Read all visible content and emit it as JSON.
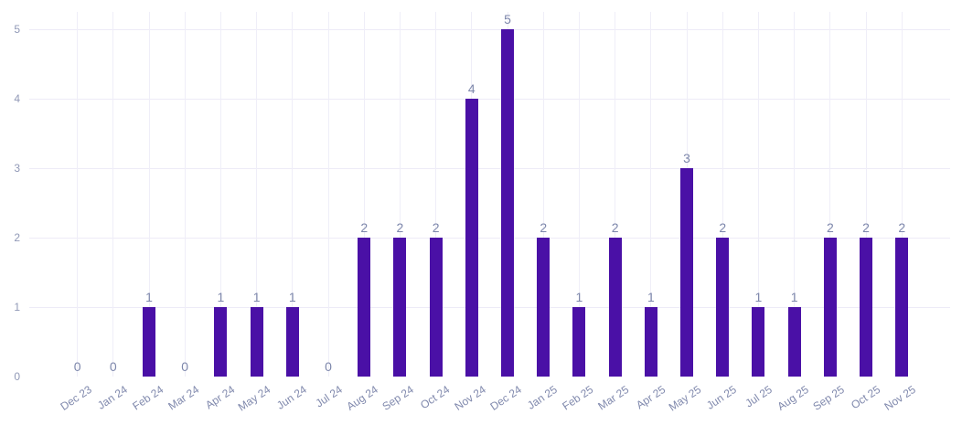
{
  "chart_data": {
    "type": "bar",
    "title": "",
    "xlabel": "",
    "ylabel": "",
    "categories": [
      "Dec 23",
      "Jan 24",
      "Feb 24",
      "Mar 24",
      "Apr 24",
      "May 24",
      "Jun 24",
      "Jul 24",
      "Aug 24",
      "Sep 24",
      "Oct 24",
      "Nov 24",
      "Dec 24",
      "Jan 25",
      "Feb 25",
      "Mar 25",
      "Apr 25",
      "May 25",
      "Jun 25",
      "Jul 25",
      "Aug 25",
      "Sep 25",
      "Oct 25",
      "Nov 25"
    ],
    "values": [
      0,
      0,
      1,
      0,
      1,
      1,
      1,
      0,
      2,
      2,
      2,
      4,
      5,
      2,
      1,
      2,
      1,
      3,
      2,
      1,
      1,
      2,
      2,
      2
    ],
    "yticks": [
      0,
      1,
      2,
      3,
      4,
      5
    ],
    "ylim": [
      0,
      5.25
    ],
    "grid": "on",
    "legend": "none",
    "data_labels": "on",
    "colors": {
      "bar": "#4a10a6",
      "data_label": "#7d87ab",
      "x_tick_label": "#8089ad",
      "y_tick_label": "#9199b7",
      "gridline": "#edebf7",
      "background": "#ffffff"
    }
  }
}
